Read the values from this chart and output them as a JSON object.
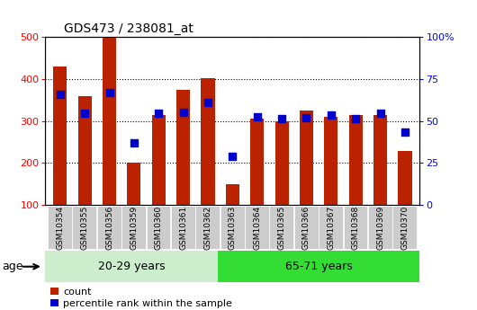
{
  "title": "GDS473 / 238081_at",
  "samples": [
    "GSM10354",
    "GSM10355",
    "GSM10356",
    "GSM10359",
    "GSM10360",
    "GSM10361",
    "GSM10362",
    "GSM10363",
    "GSM10364",
    "GSM10365",
    "GSM10366",
    "GSM10367",
    "GSM10368",
    "GSM10369",
    "GSM10370"
  ],
  "counts": [
    430,
    360,
    498,
    200,
    315,
    375,
    403,
    148,
    305,
    300,
    325,
    310,
    315,
    315,
    228
  ],
  "percentile_ranks_left": [
    363,
    318,
    368,
    248,
    318,
    320,
    345,
    215,
    310,
    305,
    308,
    313,
    305,
    318,
    273
  ],
  "group1_count": 7,
  "group2_count": 8,
  "group1_label": "20-29 years",
  "group2_label": "65-71 years",
  "age_label": "age",
  "ylim_left": [
    100,
    500
  ],
  "yticks_left": [
    100,
    200,
    300,
    400,
    500
  ],
  "yticks_right": [
    0,
    25,
    50,
    75,
    100
  ],
  "bar_color": "#bb2200",
  "dot_color": "#0000cc",
  "group1_bg": "#cceecc",
  "group2_bg": "#33dd33",
  "tick_bg": "#cccccc",
  "legend_count_label": "count",
  "legend_pct_label": "percentile rank within the sample",
  "bar_width": 0.55
}
